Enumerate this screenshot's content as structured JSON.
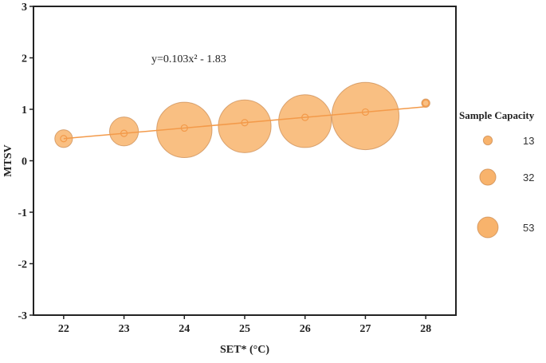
{
  "chart_data": {
    "type": "scatter",
    "xlabel": "SET* (°C)",
    "ylabel": "MTSV",
    "xlim": [
      21.5,
      28.5
    ],
    "ylim": [
      -3,
      3
    ],
    "x_ticks": [
      "22",
      "23",
      "24",
      "25",
      "26",
      "27",
      "28"
    ],
    "y_ticks": [
      "3",
      "2",
      "1",
      "0",
      "-1",
      "-2",
      "-3"
    ],
    "annotation": "y=0.103x² - 1.83",
    "bubble_color": "#F7A652",
    "trend_line": {
      "x": [
        22,
        28
      ],
      "y": [
        0.43,
        1.05
      ]
    },
    "points": [
      {
        "x": 22,
        "y": 0.43,
        "size": 9
      },
      {
        "x": 23,
        "y": 0.57,
        "size": 24
      },
      {
        "x": 24,
        "y": 0.6,
        "size": 88
      },
      {
        "x": 25,
        "y": 0.67,
        "size": 80
      },
      {
        "x": 26,
        "y": 0.77,
        "size": 80
      },
      {
        "x": 27,
        "y": 0.87,
        "size": 130
      },
      {
        "x": 28,
        "y": 1.12,
        "size": 2
      }
    ],
    "legend": {
      "title": "Sample Capacity",
      "placement": "right",
      "entries": [
        {
          "label": "13",
          "size": 13
        },
        {
          "label": "32",
          "size": 32
        },
        {
          "label": "53",
          "size": 53
        }
      ]
    }
  }
}
